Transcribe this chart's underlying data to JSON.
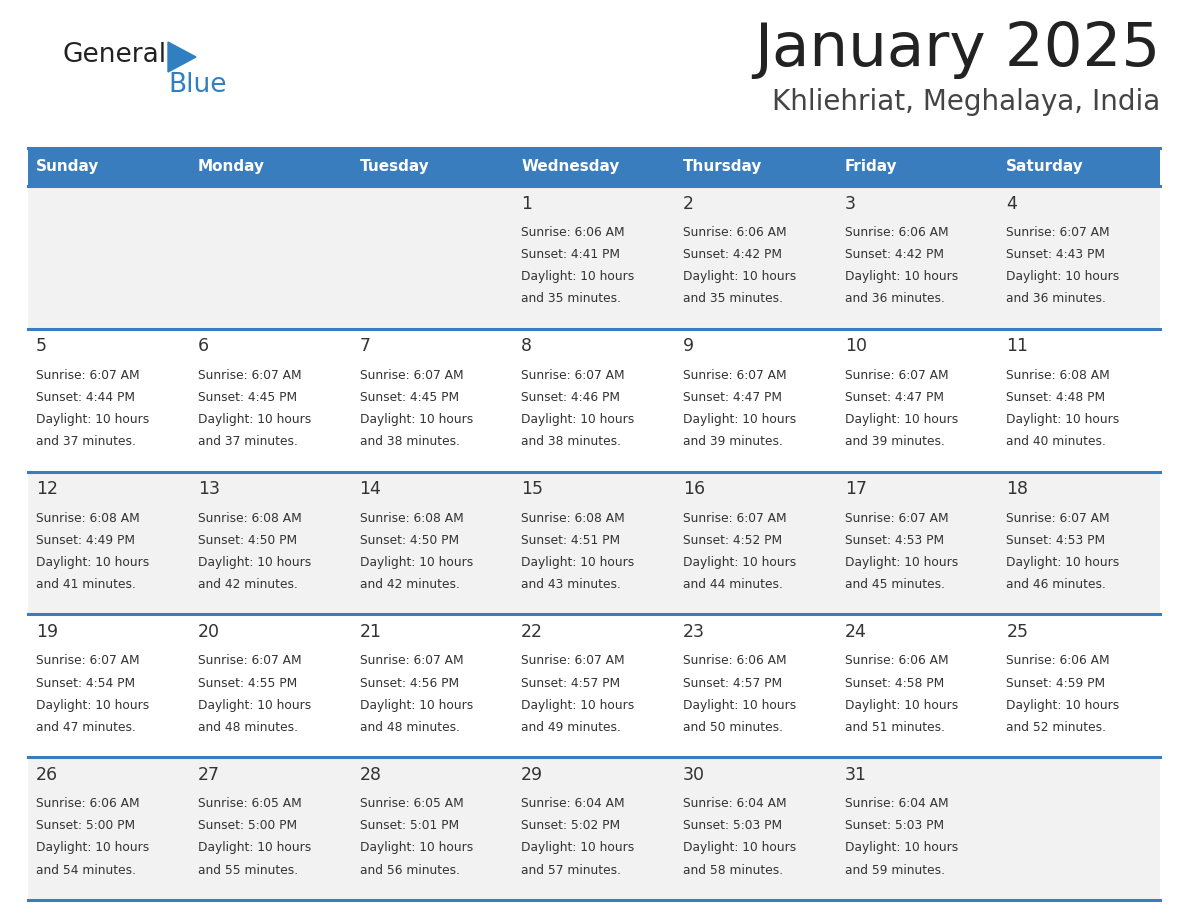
{
  "title": "January 2025",
  "subtitle": "Khliehriat, Meghalaya, India",
  "header_color": "#3a7dbf",
  "header_text_color": "#ffffff",
  "cell_bg_light": "#f2f2f2",
  "cell_bg_white": "#ffffff",
  "border_color": "#3a7dbf",
  "text_color": "#333333",
  "day_names": [
    "Sunday",
    "Monday",
    "Tuesday",
    "Wednesday",
    "Thursday",
    "Friday",
    "Saturday"
  ],
  "days": [
    {
      "day": 1,
      "col": 3,
      "row": 0,
      "sunrise": "6:06 AM",
      "sunset": "4:41 PM",
      "daylight_h": "10 hours",
      "daylight_m": "and 35 minutes."
    },
    {
      "day": 2,
      "col": 4,
      "row": 0,
      "sunrise": "6:06 AM",
      "sunset": "4:42 PM",
      "daylight_h": "10 hours",
      "daylight_m": "and 35 minutes."
    },
    {
      "day": 3,
      "col": 5,
      "row": 0,
      "sunrise": "6:06 AM",
      "sunset": "4:42 PM",
      "daylight_h": "10 hours",
      "daylight_m": "and 36 minutes."
    },
    {
      "day": 4,
      "col": 6,
      "row": 0,
      "sunrise": "6:07 AM",
      "sunset": "4:43 PM",
      "daylight_h": "10 hours",
      "daylight_m": "and 36 minutes."
    },
    {
      "day": 5,
      "col": 0,
      "row": 1,
      "sunrise": "6:07 AM",
      "sunset": "4:44 PM",
      "daylight_h": "10 hours",
      "daylight_m": "and 37 minutes."
    },
    {
      "day": 6,
      "col": 1,
      "row": 1,
      "sunrise": "6:07 AM",
      "sunset": "4:45 PM",
      "daylight_h": "10 hours",
      "daylight_m": "and 37 minutes."
    },
    {
      "day": 7,
      "col": 2,
      "row": 1,
      "sunrise": "6:07 AM",
      "sunset": "4:45 PM",
      "daylight_h": "10 hours",
      "daylight_m": "and 38 minutes."
    },
    {
      "day": 8,
      "col": 3,
      "row": 1,
      "sunrise": "6:07 AM",
      "sunset": "4:46 PM",
      "daylight_h": "10 hours",
      "daylight_m": "and 38 minutes."
    },
    {
      "day": 9,
      "col": 4,
      "row": 1,
      "sunrise": "6:07 AM",
      "sunset": "4:47 PM",
      "daylight_h": "10 hours",
      "daylight_m": "and 39 minutes."
    },
    {
      "day": 10,
      "col": 5,
      "row": 1,
      "sunrise": "6:07 AM",
      "sunset": "4:47 PM",
      "daylight_h": "10 hours",
      "daylight_m": "and 39 minutes."
    },
    {
      "day": 11,
      "col": 6,
      "row": 1,
      "sunrise": "6:08 AM",
      "sunset": "4:48 PM",
      "daylight_h": "10 hours",
      "daylight_m": "and 40 minutes."
    },
    {
      "day": 12,
      "col": 0,
      "row": 2,
      "sunrise": "6:08 AM",
      "sunset": "4:49 PM",
      "daylight_h": "10 hours",
      "daylight_m": "and 41 minutes."
    },
    {
      "day": 13,
      "col": 1,
      "row": 2,
      "sunrise": "6:08 AM",
      "sunset": "4:50 PM",
      "daylight_h": "10 hours",
      "daylight_m": "and 42 minutes."
    },
    {
      "day": 14,
      "col": 2,
      "row": 2,
      "sunrise": "6:08 AM",
      "sunset": "4:50 PM",
      "daylight_h": "10 hours",
      "daylight_m": "and 42 minutes."
    },
    {
      "day": 15,
      "col": 3,
      "row": 2,
      "sunrise": "6:08 AM",
      "sunset": "4:51 PM",
      "daylight_h": "10 hours",
      "daylight_m": "and 43 minutes."
    },
    {
      "day": 16,
      "col": 4,
      "row": 2,
      "sunrise": "6:07 AM",
      "sunset": "4:52 PM",
      "daylight_h": "10 hours",
      "daylight_m": "and 44 minutes."
    },
    {
      "day": 17,
      "col": 5,
      "row": 2,
      "sunrise": "6:07 AM",
      "sunset": "4:53 PM",
      "daylight_h": "10 hours",
      "daylight_m": "and 45 minutes."
    },
    {
      "day": 18,
      "col": 6,
      "row": 2,
      "sunrise": "6:07 AM",
      "sunset": "4:53 PM",
      "daylight_h": "10 hours",
      "daylight_m": "and 46 minutes."
    },
    {
      "day": 19,
      "col": 0,
      "row": 3,
      "sunrise": "6:07 AM",
      "sunset": "4:54 PM",
      "daylight_h": "10 hours",
      "daylight_m": "and 47 minutes."
    },
    {
      "day": 20,
      "col": 1,
      "row": 3,
      "sunrise": "6:07 AM",
      "sunset": "4:55 PM",
      "daylight_h": "10 hours",
      "daylight_m": "and 48 minutes."
    },
    {
      "day": 21,
      "col": 2,
      "row": 3,
      "sunrise": "6:07 AM",
      "sunset": "4:56 PM",
      "daylight_h": "10 hours",
      "daylight_m": "and 48 minutes."
    },
    {
      "day": 22,
      "col": 3,
      "row": 3,
      "sunrise": "6:07 AM",
      "sunset": "4:57 PM",
      "daylight_h": "10 hours",
      "daylight_m": "and 49 minutes."
    },
    {
      "day": 23,
      "col": 4,
      "row": 3,
      "sunrise": "6:06 AM",
      "sunset": "4:57 PM",
      "daylight_h": "10 hours",
      "daylight_m": "and 50 minutes."
    },
    {
      "day": 24,
      "col": 5,
      "row": 3,
      "sunrise": "6:06 AM",
      "sunset": "4:58 PM",
      "daylight_h": "10 hours",
      "daylight_m": "and 51 minutes."
    },
    {
      "day": 25,
      "col": 6,
      "row": 3,
      "sunrise": "6:06 AM",
      "sunset": "4:59 PM",
      "daylight_h": "10 hours",
      "daylight_m": "and 52 minutes."
    },
    {
      "day": 26,
      "col": 0,
      "row": 4,
      "sunrise": "6:06 AM",
      "sunset": "5:00 PM",
      "daylight_h": "10 hours",
      "daylight_m": "and 54 minutes."
    },
    {
      "day": 27,
      "col": 1,
      "row": 4,
      "sunrise": "6:05 AM",
      "sunset": "5:00 PM",
      "daylight_h": "10 hours",
      "daylight_m": "and 55 minutes."
    },
    {
      "day": 28,
      "col": 2,
      "row": 4,
      "sunrise": "6:05 AM",
      "sunset": "5:01 PM",
      "daylight_h": "10 hours",
      "daylight_m": "and 56 minutes."
    },
    {
      "day": 29,
      "col": 3,
      "row": 4,
      "sunrise": "6:04 AM",
      "sunset": "5:02 PM",
      "daylight_h": "10 hours",
      "daylight_m": "and 57 minutes."
    },
    {
      "day": 30,
      "col": 4,
      "row": 4,
      "sunrise": "6:04 AM",
      "sunset": "5:03 PM",
      "daylight_h": "10 hours",
      "daylight_m": "and 58 minutes."
    },
    {
      "day": 31,
      "col": 5,
      "row": 4,
      "sunrise": "6:04 AM",
      "sunset": "5:03 PM",
      "daylight_h": "10 hours",
      "daylight_m": "and 59 minutes."
    }
  ]
}
